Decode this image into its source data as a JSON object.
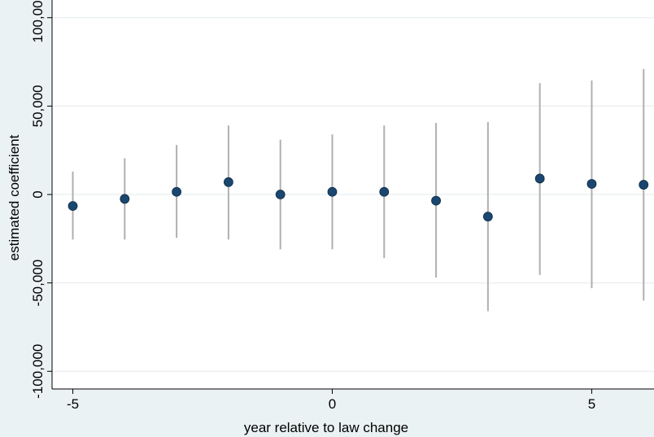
{
  "chart_data": {
    "type": "scatter",
    "xlabel": "year relative to law change",
    "ylabel": "estimated coefficient",
    "xlim": [
      -5.4,
      6.2
    ],
    "ylim": [
      -110000,
      110000
    ],
    "x_ticks": [
      {
        "value": -5,
        "label": "-5"
      },
      {
        "value": 0,
        "label": "0"
      },
      {
        "value": 5,
        "label": "5"
      }
    ],
    "y_ticks": [
      {
        "value": -100000,
        "label": "-100,000"
      },
      {
        "value": -50000,
        "label": "-50,000"
      },
      {
        "value": 0,
        "label": "0"
      },
      {
        "value": 50000,
        "label": "50,000"
      },
      {
        "value": 100000,
        "label": "100,000"
      }
    ],
    "grid": true,
    "series": [
      {
        "points": [
          {
            "x": -5,
            "y": -6500,
            "ci": [
              -25500,
              13000
            ]
          },
          {
            "x": -4,
            "y": -2500,
            "ci": [
              -25500,
              20500
            ]
          },
          {
            "x": -3,
            "y": 1500,
            "ci": [
              -24500,
              28000
            ]
          },
          {
            "x": -2,
            "y": 7000,
            "ci": [
              -25500,
              39000
            ]
          },
          {
            "x": -1,
            "y": 0,
            "ci": [
              -31000,
              31000
            ]
          },
          {
            "x": 0,
            "y": 1500,
            "ci": [
              -31000,
              34000
            ]
          },
          {
            "x": 1,
            "y": 1500,
            "ci": [
              -36000,
              39000
            ]
          },
          {
            "x": 2,
            "y": -3500,
            "ci": [
              -47000,
              40500
            ]
          },
          {
            "x": 3,
            "y": -12500,
            "ci": [
              -66000,
              41000
            ]
          },
          {
            "x": 4,
            "y": 9000,
            "ci": [
              -45500,
              63000
            ]
          },
          {
            "x": 5,
            "y": 6000,
            "ci": [
              -53000,
              64500
            ]
          },
          {
            "x": 6,
            "y": 5500,
            "ci": [
              -60000,
              71000
            ]
          }
        ]
      }
    ],
    "colors": {
      "marker": "#1a476f",
      "ci_line": "#b0b0b0",
      "grid": "#e8eef0",
      "background": "#eaf2f3",
      "plot_background": "#ffffff"
    }
  }
}
